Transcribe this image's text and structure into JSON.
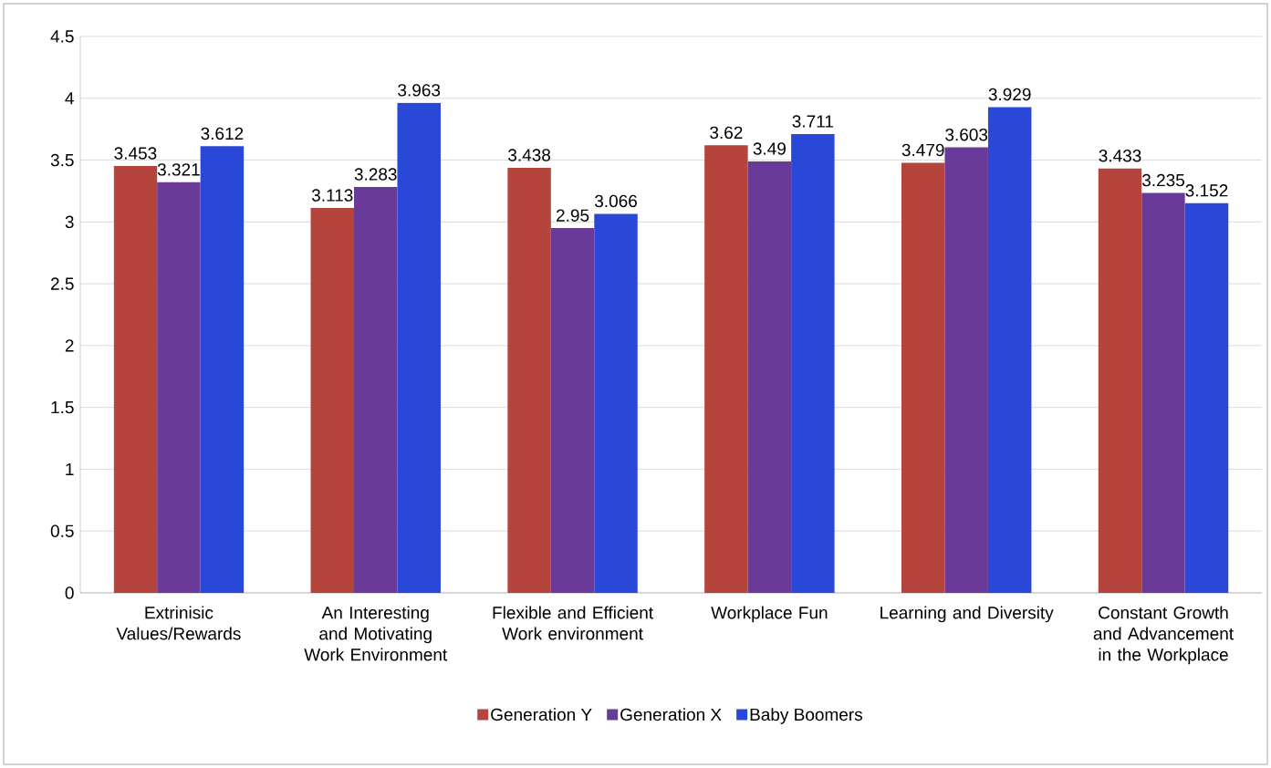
{
  "chart_data": {
    "type": "bar",
    "categories": [
      "Extrinisic Values/Rewards",
      "An Interesting and Motivating Work Environment",
      "Flexible and Efficient Work environment",
      "Workplace Fun",
      "Learning and Diversity",
      "Constant Growth and Advancement in the Workplace"
    ],
    "series": [
      {
        "name": "Generation Y",
        "color": "#b4443c",
        "values": [
          3.453,
          3.113,
          3.438,
          3.62,
          3.479,
          3.433
        ]
      },
      {
        "name": "Generation X",
        "color": "#6a3a98",
        "values": [
          3.321,
          3.283,
          2.95,
          3.49,
          3.603,
          3.235
        ]
      },
      {
        "name": "Baby Boomers",
        "color": "#2a48d8",
        "values": [
          3.612,
          3.963,
          3.066,
          3.711,
          3.929,
          3.152
        ]
      }
    ],
    "ylim": [
      0,
      4.5
    ],
    "yticks": [
      0,
      0.5,
      1,
      1.5,
      2,
      2.5,
      3,
      3.5,
      4,
      4.5
    ],
    "grid": "y",
    "legend": "bottom",
    "data_labels": true
  }
}
